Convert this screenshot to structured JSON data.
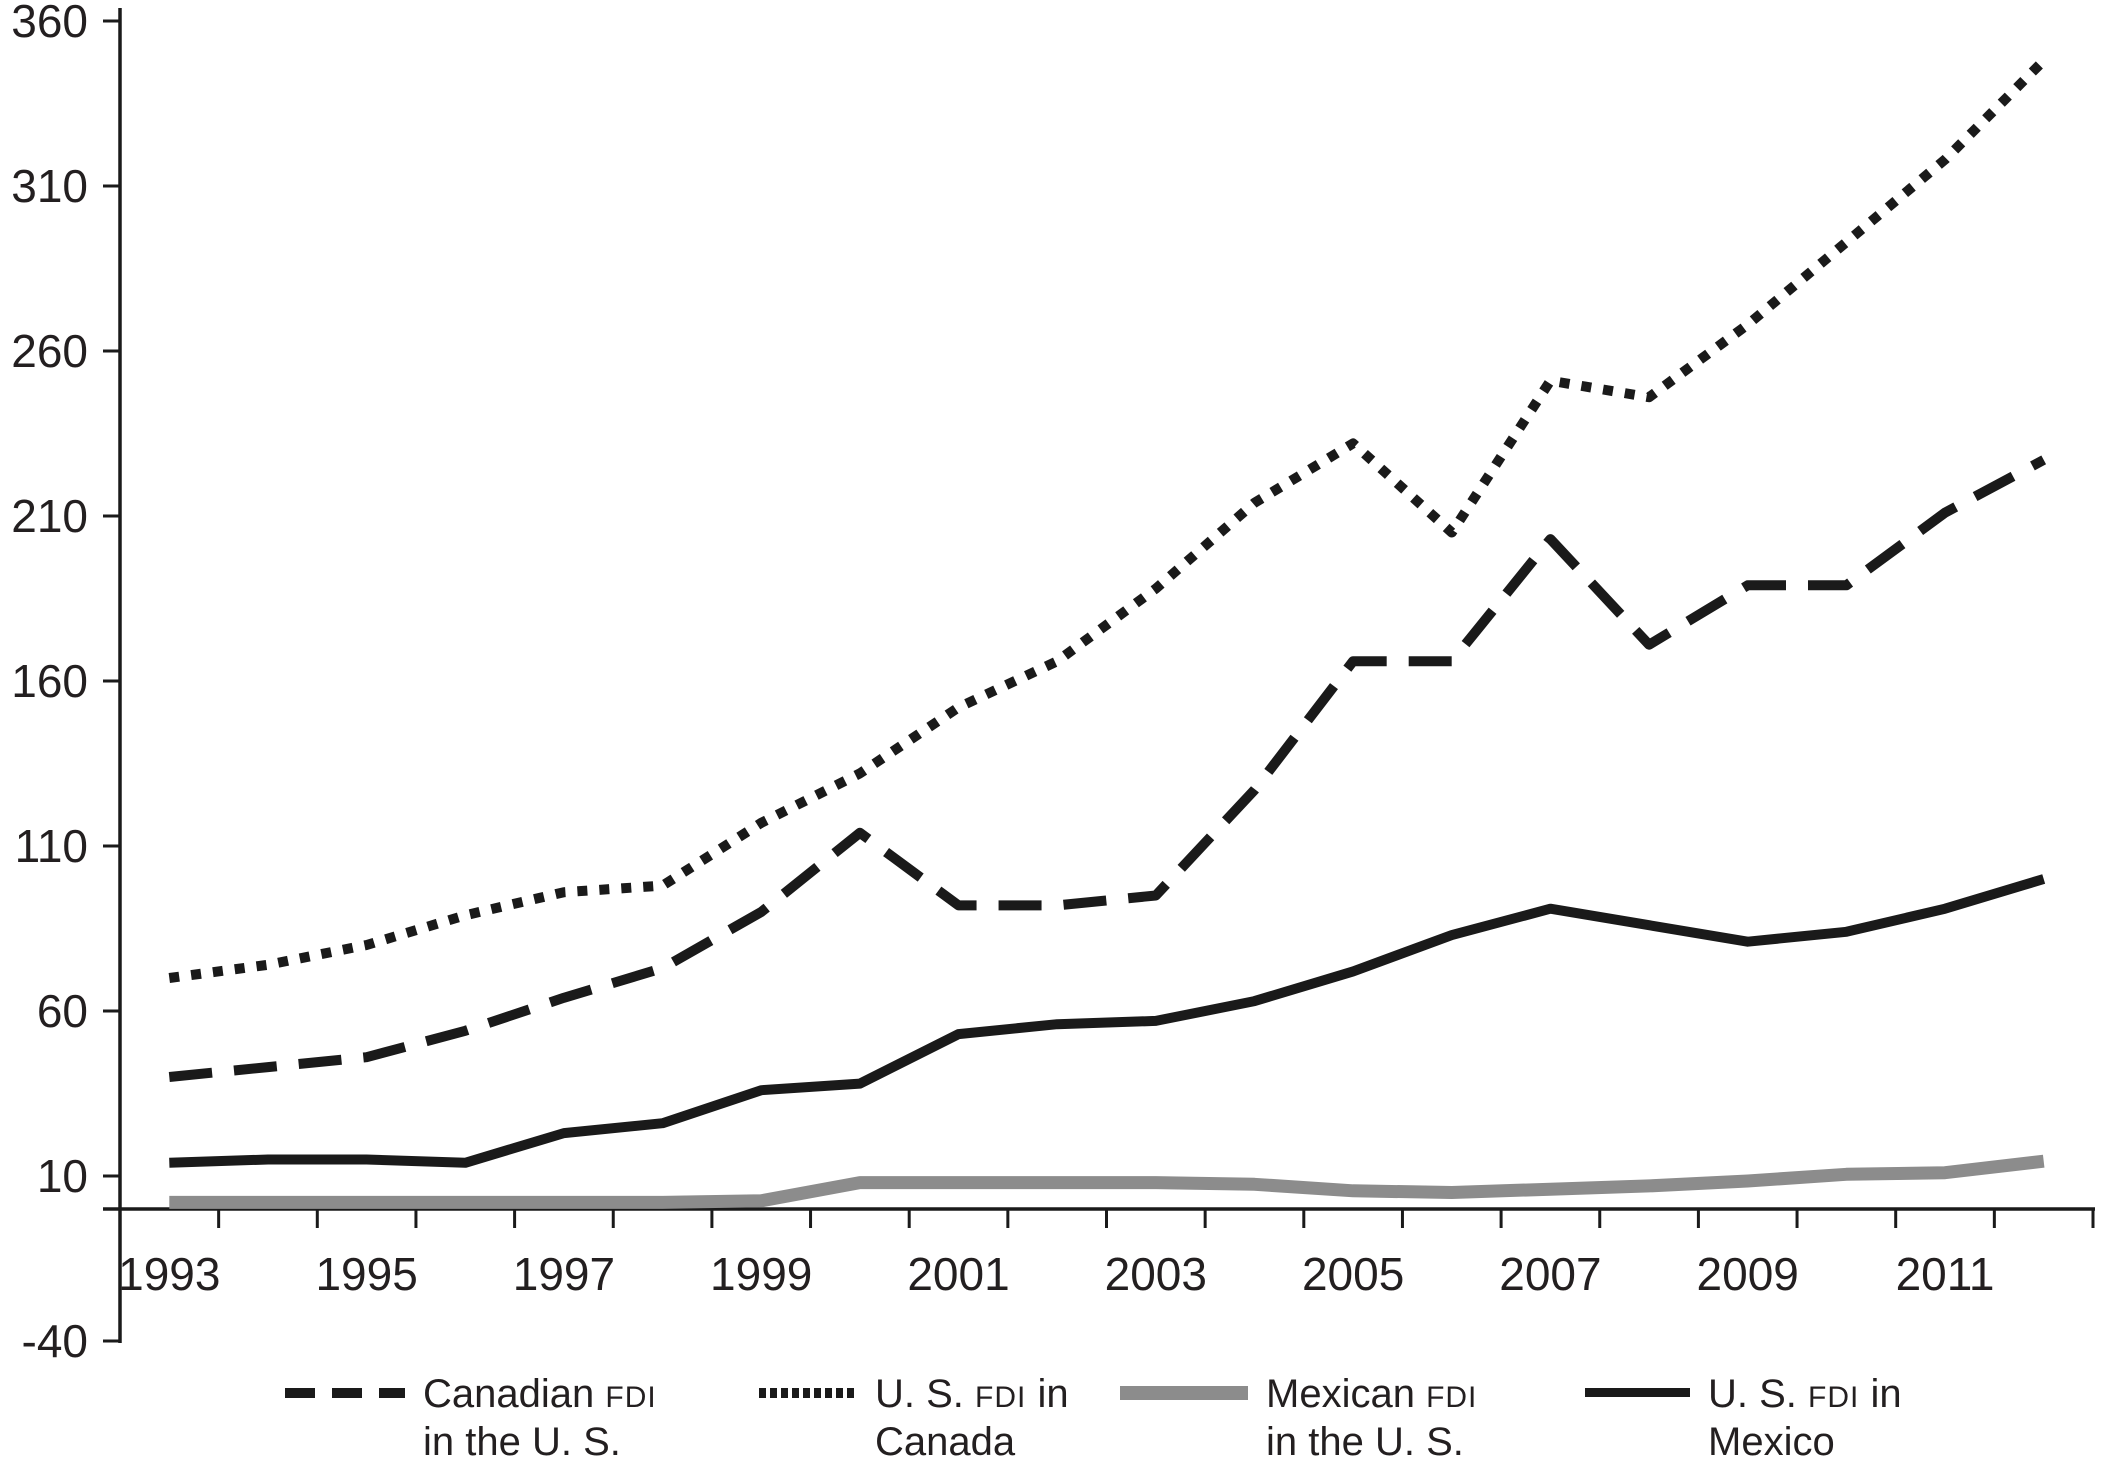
{
  "page": {
    "background": "#ffffff",
    "text_color": "#231f20"
  },
  "chart_data": {
    "type": "line",
    "title": "",
    "x": [
      1993,
      1994,
      1995,
      1996,
      1997,
      1998,
      1999,
      2000,
      2001,
      2002,
      2003,
      2004,
      2005,
      2006,
      2007,
      2008,
      2009,
      2010,
      2011,
      2012
    ],
    "x_tick_labels": [
      "1993",
      "1995",
      "1997",
      "1999",
      "2001",
      "2003",
      "2005",
      "2007",
      "2009",
      "2011"
    ],
    "y_ticks": [
      360,
      310,
      260,
      210,
      160,
      110,
      60,
      10,
      -40
    ],
    "ylim": [
      -40,
      360
    ],
    "grid": false,
    "legend_position": "bottom",
    "axis_color": "#1a1a1a",
    "series": [
      {
        "name": "Canadian FDI in the U. S.",
        "style": "dashed",
        "color": "#1a1a1a",
        "values": [
          40,
          43,
          46,
          54,
          64,
          73,
          90,
          114,
          92,
          92,
          95,
          127,
          166,
          166,
          203,
          171,
          189,
          189,
          211,
          227
        ]
      },
      {
        "name": "U. S. FDI in Canada",
        "style": "dotted",
        "color": "#1a1a1a",
        "values": [
          70,
          74,
          80,
          89,
          96,
          98,
          117,
          132,
          152,
          166,
          188,
          214,
          232,
          205,
          251,
          246,
          268,
          293,
          318,
          348
        ]
      },
      {
        "name": "Mexican FDI in the U. S.",
        "style": "solid-thick",
        "color": "#8c8c8c",
        "values": [
          2,
          2,
          2,
          2,
          2,
          2,
          2.5,
          8,
          8,
          8,
          8,
          7.5,
          5.5,
          5,
          6,
          7,
          8.5,
          10.5,
          11,
          14.5
        ]
      },
      {
        "name": "U. S. FDI in Mexico",
        "style": "solid",
        "color": "#1a1a1a",
        "values": [
          14,
          15,
          15,
          14,
          23,
          26,
          36,
          38,
          53,
          56,
          57,
          63,
          72,
          83,
          91,
          86,
          81,
          84,
          91,
          100
        ]
      }
    ]
  },
  "legend": {
    "items": [
      {
        "pre": "Canadian ",
        "fdi": "FDI",
        "post": "",
        "line2": "in the U. S.",
        "style": "dashed",
        "color": "#1a1a1a"
      },
      {
        "pre": "U. S. ",
        "fdi": "FDI",
        "post": " in",
        "line2": "Canada",
        "style": "dotted",
        "color": "#1a1a1a"
      },
      {
        "pre": "Mexican ",
        "fdi": "FDI",
        "post": "",
        "line2": "in the U. S.",
        "style": "solid-thick",
        "color": "#8c8c8c"
      },
      {
        "pre": "U. S. ",
        "fdi": "FDI",
        "post": " in",
        "line2": "Mexico",
        "style": "solid",
        "color": "#1a1a1a"
      }
    ]
  }
}
